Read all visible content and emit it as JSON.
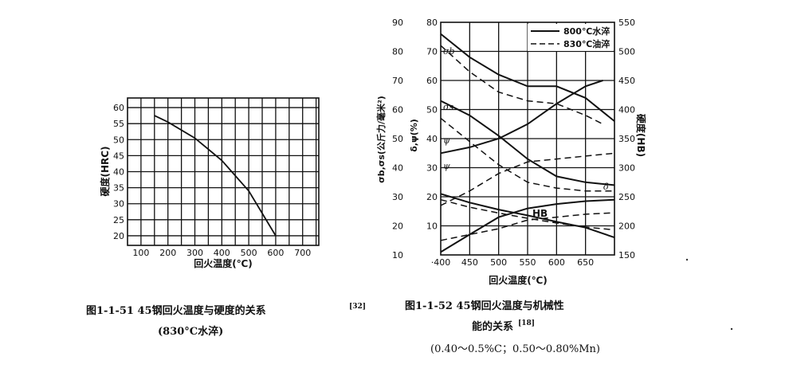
{
  "chart_data": [
    {
      "type": "line",
      "title": "",
      "xlabel": "回火温度(℃)",
      "ylabel": "硬度(HRC)",
      "x_ticks": [
        "100",
        "200",
        "300",
        "400",
        "500",
        "600",
        "700"
      ],
      "y_ticks": [
        "20",
        "25",
        "30",
        "35",
        "40",
        "45",
        "50",
        "55",
        "60"
      ],
      "xlim": [
        50,
        760
      ],
      "ylim": [
        17,
        63
      ],
      "grid": true,
      "series": [
        {
          "x": [
            150,
            200,
            300,
            400,
            500,
            600
          ],
          "y": [
            57.5,
            55.5,
            50.5,
            43.5,
            34,
            20
          ]
        }
      ],
      "caption": {
        "line1": "图1-1-51  45钢回火温度与硬度的关系",
        "ref": "[32]",
        "line2": "(830°C水淬)"
      }
    },
    {
      "type": "line",
      "title": "",
      "xlabel": "回火温度(℃)",
      "ylabel_left_outer": "σb,σs(公斤力/毫米²)",
      "ylabel_left_inner": "δ,ψ(%)",
      "ylabel_right": "硬度(HB)",
      "x_ticks": [
        "400",
        "450",
        "500",
        "550",
        "600",
        "650"
      ],
      "y_ticks_outer": [
        "10",
        "20",
        "30",
        "40",
        "50",
        "60",
        "70",
        "80",
        "90"
      ],
      "y_ticks_inner": [
        "10",
        "20",
        "30",
        "40",
        "50",
        "60",
        "70",
        "80"
      ],
      "y_ticks_right": [
        "150",
        "200",
        "250",
        "300",
        "350",
        "400",
        "450",
        "500",
        "550"
      ],
      "xlim": [
        400,
        700
      ],
      "ylim_outer": [
        10,
        90
      ],
      "ylim_right": [
        150,
        550
      ],
      "grid": true,
      "legend": {
        "position": "top-right",
        "items": [
          {
            "label": "800℃水淬",
            "style": "solid"
          },
          {
            "label": "830℃油淬",
            "style": "dashed"
          }
        ]
      },
      "curve_labels": {
        "sigma_b": "σb",
        "sigma_s": "σs",
        "psi": "ψ",
        "delta": "δ",
        "hb": "HB"
      },
      "series": [
        {
          "name": "σb 800℃水淬",
          "style": "solid",
          "x": [
            400,
            450,
            500,
            550,
            600,
            650,
            700
          ],
          "y": [
            86,
            78,
            72,
            68,
            68,
            64,
            56
          ]
        },
        {
          "name": "σb 830℃油淬",
          "style": "dashed",
          "x": [
            400,
            450,
            500,
            550,
            600,
            650,
            680
          ],
          "y": [
            82,
            73,
            66,
            63,
            62,
            58,
            55
          ]
        },
        {
          "name": "σs 800℃水淬",
          "style": "solid",
          "x": [
            400,
            450,
            500,
            550,
            600,
            650,
            700
          ],
          "y": [
            63,
            58,
            51,
            43,
            37,
            35,
            34
          ]
        },
        {
          "name": "σs 830℃油淬",
          "style": "dashed",
          "x": [
            400,
            450,
            500,
            550,
            600,
            650,
            700
          ],
          "y": [
            57,
            49,
            41,
            35,
            33,
            32,
            32
          ]
        },
        {
          "name": "ψ 800℃水淬",
          "style": "solid",
          "x": [
            400,
            450,
            500,
            550,
            600,
            650,
            680
          ],
          "y": [
            45,
            47,
            50,
            55,
            62,
            68,
            70
          ]
        },
        {
          "name": "ψ 830℃油淬",
          "style": "dashed",
          "x": [
            400,
            450,
            500,
            550,
            600,
            650,
            700
          ],
          "y": [
            27,
            32,
            38,
            42,
            43,
            44,
            45
          ]
        },
        {
          "name": "δ 800℃水淬",
          "style": "solid",
          "x": [
            400,
            450,
            500,
            550,
            600,
            650,
            700
          ],
          "y": [
            11,
            17,
            23,
            26,
            27.5,
            28.5,
            29
          ]
        },
        {
          "name": "δ 830℃油淬",
          "style": "dashed",
          "x": [
            400,
            450,
            500,
            550,
            600,
            650,
            700
          ],
          "y": [
            15,
            17,
            19,
            22,
            23,
            24,
            24.5
          ]
        },
        {
          "name": "HB 800℃水淬",
          "style": "solid",
          "x": [
            400,
            450,
            500,
            550,
            600,
            650,
            700
          ],
          "y": [
            255,
            240,
            228,
            218,
            207,
            197,
            180
          ]
        },
        {
          "name": "HB 830℃油淬",
          "style": "dashed",
          "x": [
            400,
            450,
            500,
            550,
            600,
            650,
            700
          ],
          "y": [
            245,
            232,
            222,
            213,
            205,
            198,
            193
          ]
        }
      ],
      "caption": {
        "line1": "图1-1-52  45钢回火温度与机械性",
        "line2": "能的关系",
        "ref": "[18]",
        "line3": "(0.40～0.5%C；0.50～0.80%Mn)"
      }
    }
  ]
}
